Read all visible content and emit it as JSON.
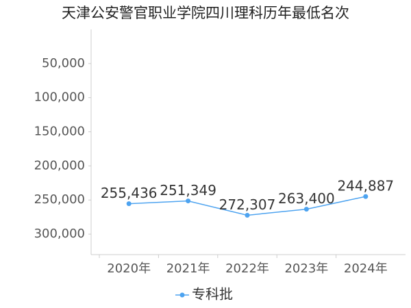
{
  "chart_data": {
    "type": "line",
    "title": "天津公安警官职业学院四川理科历年最低名次",
    "categories": [
      "2020年",
      "2021年",
      "2022年",
      "2023年",
      "2024年"
    ],
    "series": [
      {
        "name": "专科批",
        "color": "#4da3f0",
        "values": [
          255436,
          251349,
          272307,
          263400,
          244887
        ],
        "value_labels": [
          "255,436",
          "251,349",
          "272,307",
          "263,400",
          "244,887"
        ]
      }
    ],
    "ylim": [
      0,
      330000
    ],
    "y_inverted": true,
    "yticks": [
      {
        "value": 50000,
        "label": "50,000"
      },
      {
        "value": 100000,
        "label": "100,000"
      },
      {
        "value": 150000,
        "label": "150,000"
      },
      {
        "value": 200000,
        "label": "200,000"
      },
      {
        "value": 250000,
        "label": "250,000"
      },
      {
        "value": 300000,
        "label": "300,000"
      }
    ],
    "grid": false,
    "legend": "bottom"
  }
}
